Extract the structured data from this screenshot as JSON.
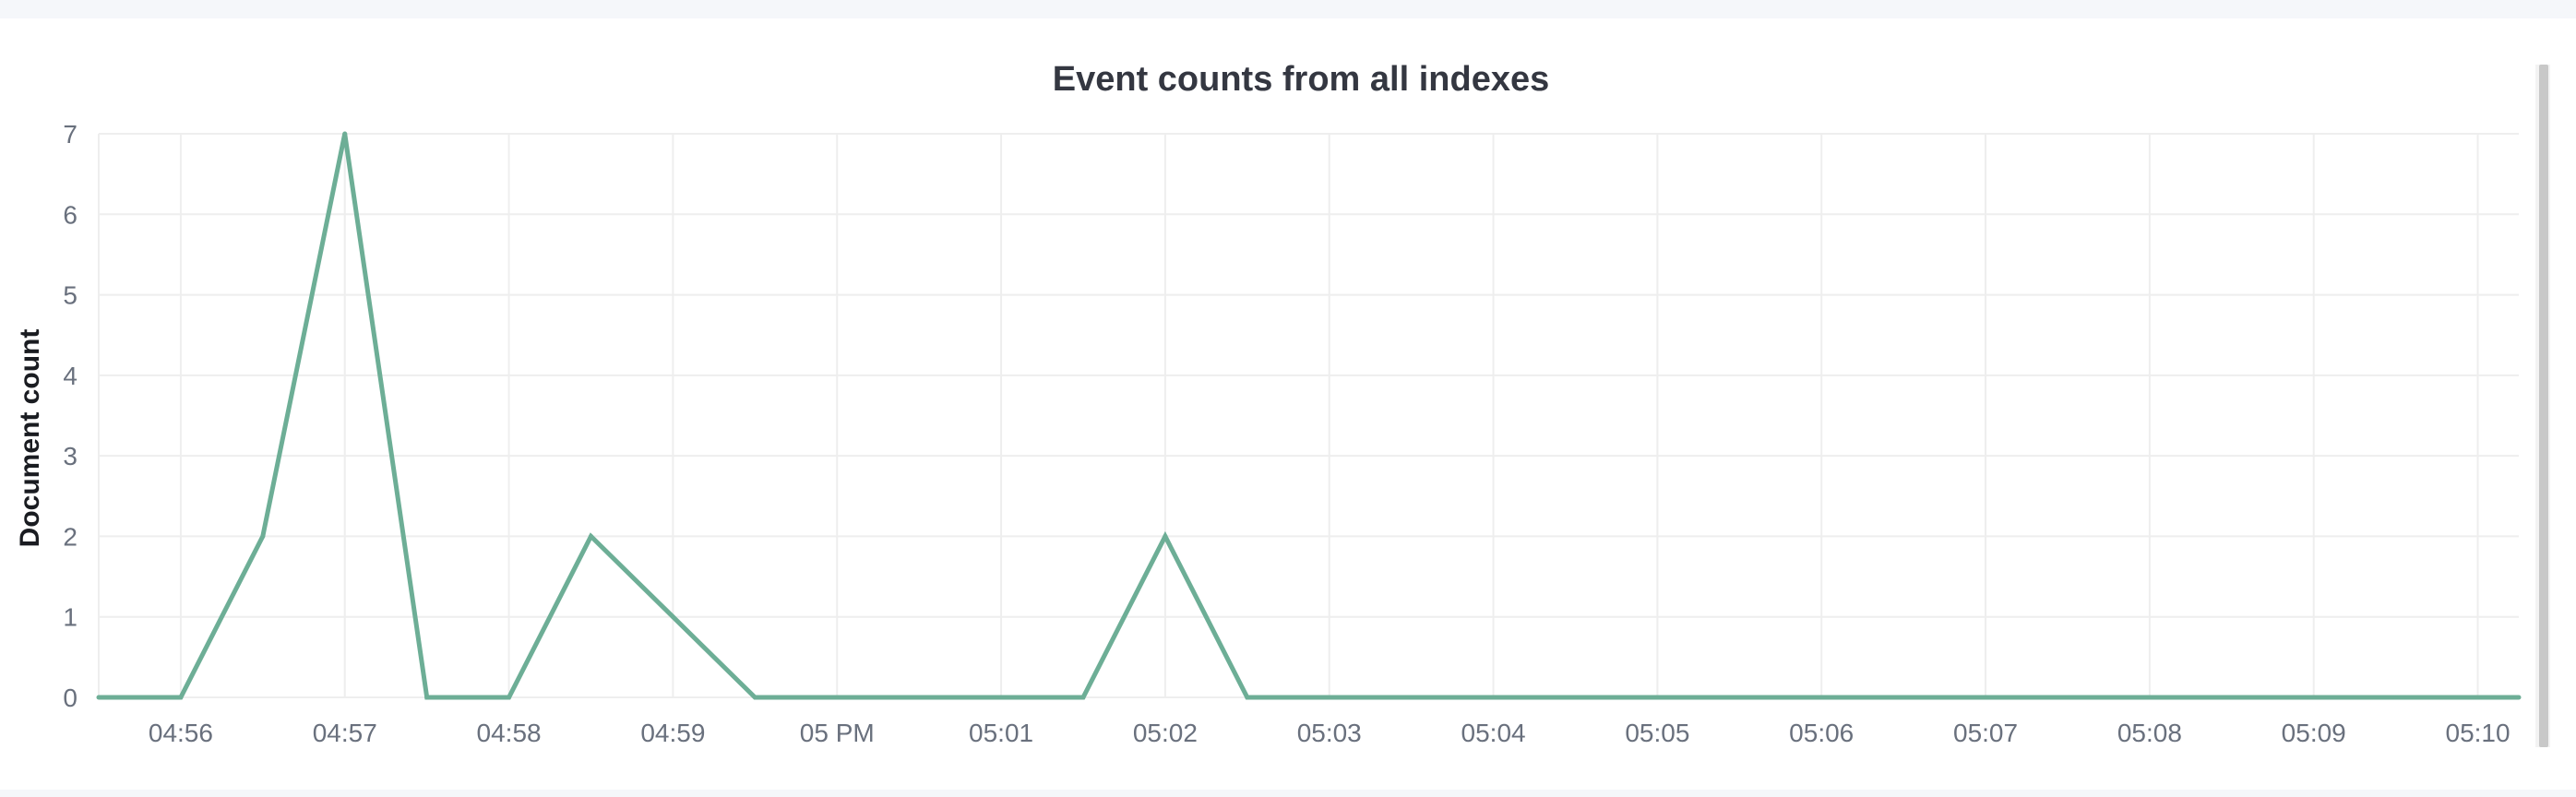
{
  "chart_data": {
    "type": "line",
    "title": "Event counts from all indexes",
    "ylabel": "Document count",
    "xlabel": "",
    "ylim": [
      0,
      7
    ],
    "y_ticks": [
      "0",
      "1",
      "2",
      "3",
      "4",
      "5",
      "6",
      "7"
    ],
    "x_tick_labels": [
      "04:56",
      "04:57",
      "04:58",
      "04:59",
      "05 PM",
      "05:01",
      "05:02",
      "05:03",
      "05:04",
      "05:05",
      "05:06",
      "05:07",
      "05:08",
      "05:09",
      "05:10"
    ],
    "grid": true,
    "legend": "none",
    "series_color": "#6dae96",
    "series": [
      {
        "x": [
          "04:55:30",
          "04:56:00",
          "04:56:30",
          "04:57:00",
          "04:57:30",
          "04:58:00",
          "04:58:30",
          "04:59:00",
          "04:59:30",
          "05:00:00",
          "05:00:30",
          "05:01:00",
          "05:01:30",
          "05:02:00",
          "05:02:30",
          "05:03:00",
          "05:03:30",
          "05:04:00",
          "05:04:30",
          "05:05:00",
          "05:05:30",
          "05:06:00",
          "05:06:30",
          "05:07:00",
          "05:07:30",
          "05:08:00",
          "05:08:30",
          "05:09:00",
          "05:09:30",
          "05:10:00",
          "05:10:15"
        ],
        "values": [
          0,
          0,
          2,
          7,
          0,
          0,
          2,
          1,
          0,
          0,
          0,
          0,
          0,
          2,
          0,
          0,
          0,
          0,
          0,
          0,
          0,
          0,
          0,
          0,
          0,
          0,
          0,
          0,
          0,
          0,
          0
        ]
      }
    ]
  }
}
